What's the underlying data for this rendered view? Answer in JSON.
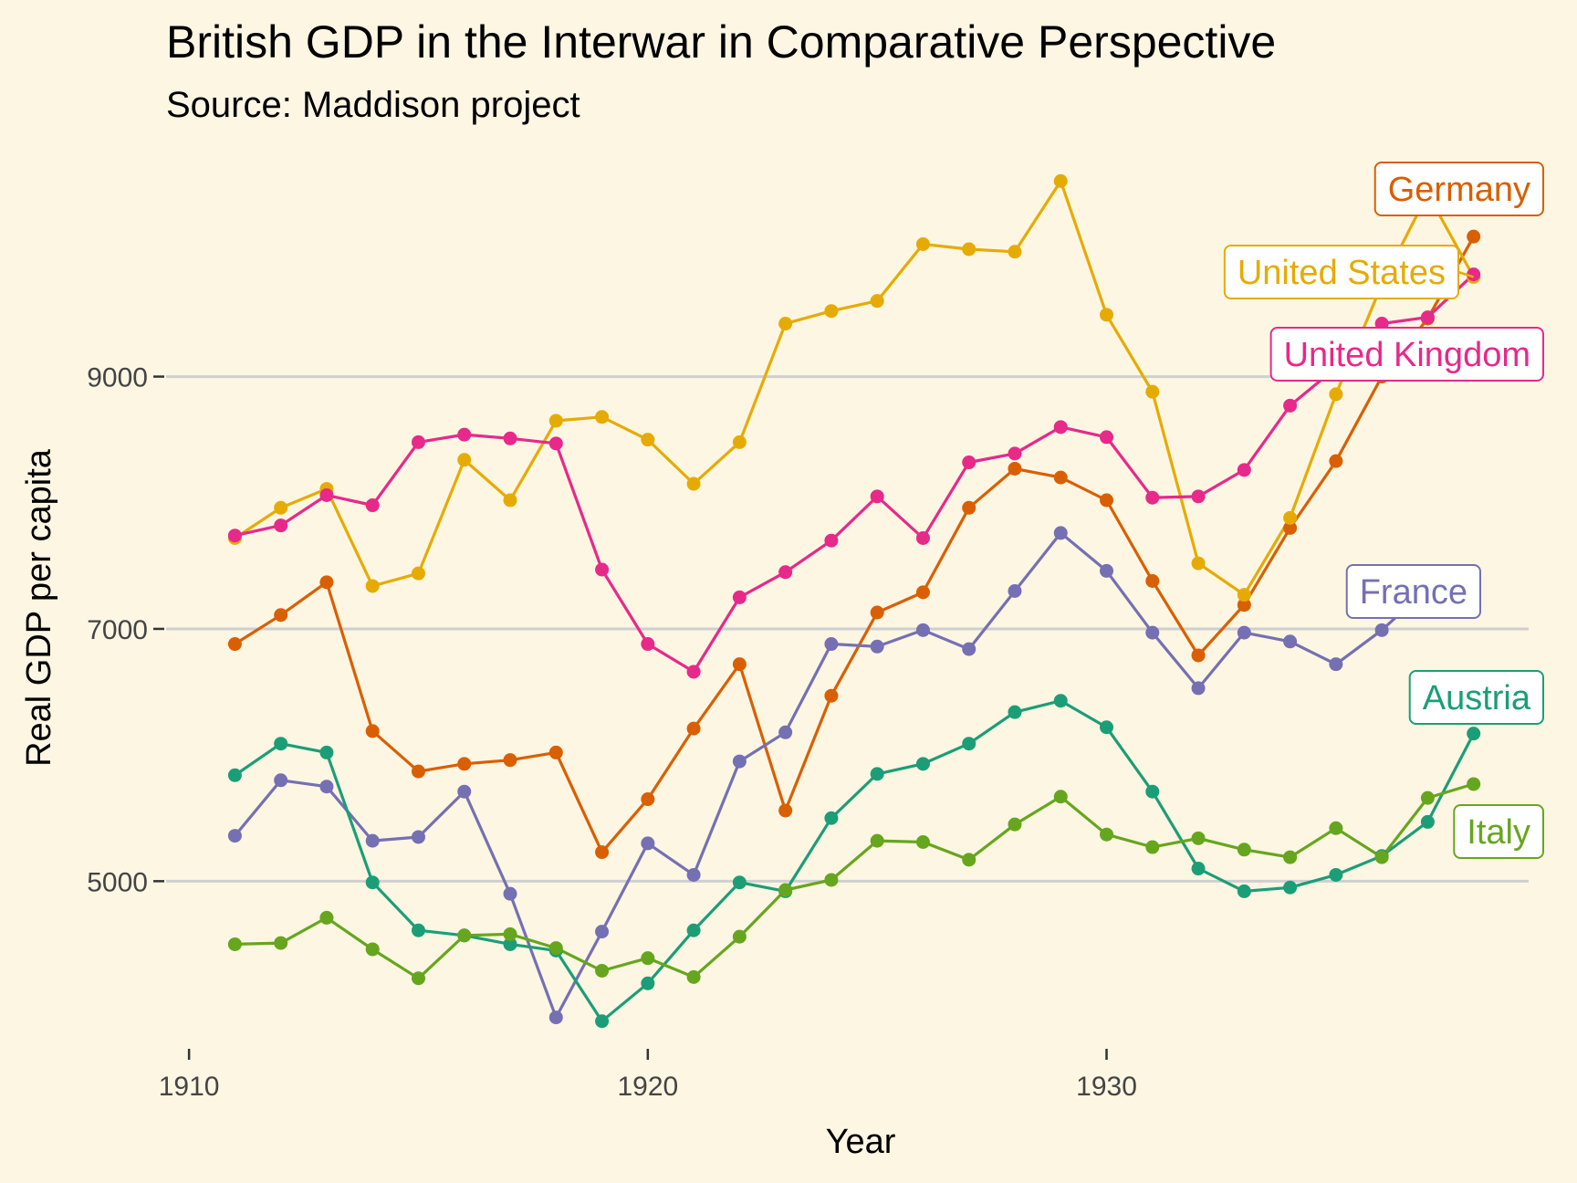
{
  "chart_data": {
    "type": "line",
    "title": "British GDP in the Interwar in Comparative Perspective",
    "subtitle": "Source: Maddison project",
    "xlabel": "Year",
    "ylabel": "Real GDP per capita",
    "xlim": [
      1909.5,
      1939.2
    ],
    "ylim": [
      3700,
      10900
    ],
    "xticks": [
      1910,
      1920,
      1930
    ],
    "yticks": [
      5000,
      7000,
      9000
    ],
    "grid": "horizontal major lines",
    "legend": "direct labels at right end of lines",
    "x": [
      1911,
      1912,
      1913,
      1914,
      1915,
      1916,
      1917,
      1918,
      1919,
      1920,
      1921,
      1922,
      1923,
      1924,
      1925,
      1926,
      1927,
      1928,
      1929,
      1930,
      1931,
      1932,
      1933,
      1934,
      1935,
      1936,
      1937,
      1938
    ],
    "series": [
      {
        "name": "Germany",
        "color": "#d95f02",
        "values": [
          6880,
          7110,
          7370,
          6190,
          5870,
          5930,
          5960,
          6020,
          5230,
          5650,
          6210,
          6720,
          5560,
          6470,
          7130,
          7290,
          7960,
          8270,
          8200,
          8020,
          7380,
          6790,
          7190,
          7800,
          8330,
          9000,
          9460,
          10110
        ]
      },
      {
        "name": "United States",
        "color": "#e6ab02",
        "values": [
          7720,
          7960,
          8110,
          7340,
          7440,
          8340,
          8020,
          8650,
          8680,
          8500,
          8150,
          8480,
          9420,
          9520,
          9600,
          10050,
          10010,
          9990,
          10550,
          9490,
          8880,
          7520,
          7270,
          7880,
          8860,
          9730,
          10450,
          9790
        ]
      },
      {
        "name": "United Kingdom",
        "color": "#e7298a",
        "values": [
          7740,
          7820,
          8060,
          7980,
          8480,
          8540,
          8510,
          8470,
          7470,
          6880,
          6660,
          7250,
          7450,
          7700,
          8050,
          7720,
          8320,
          8390,
          8600,
          8520,
          8040,
          8050,
          8260,
          8770,
          9070,
          9420,
          9470,
          9810
        ]
      },
      {
        "name": "France",
        "color": "#7570b3",
        "values": [
          5360,
          5800,
          5750,
          5320,
          5350,
          5710,
          4900,
          3920,
          4600,
          5300,
          5050,
          5950,
          6180,
          6880,
          6860,
          6990,
          6840,
          7300,
          7760,
          7460,
          6970,
          6530,
          6970,
          6900,
          6720,
          6990,
          7320,
          7350
        ]
      },
      {
        "name": "Austria",
        "color": "#1b9e77",
        "values": [
          5840,
          6090,
          6020,
          4990,
          4610,
          4570,
          4500,
          4450,
          3890,
          4190,
          4610,
          4990,
          4920,
          5500,
          5850,
          5930,
          6090,
          6340,
          6430,
          6220,
          5710,
          5100,
          4920,
          4950,
          5050,
          5200,
          5470,
          6170
        ]
      },
      {
        "name": "Italy",
        "color": "#66a61e",
        "values": [
          4500,
          4510,
          4710,
          4460,
          4230,
          4570,
          4580,
          4470,
          4290,
          4390,
          4240,
          4560,
          4930,
          5010,
          5320,
          5310,
          5170,
          5450,
          5670,
          5370,
          5270,
          5340,
          5250,
          5190,
          5420,
          5190,
          5660,
          5770
        ]
      }
    ],
    "labels": [
      {
        "text": "Germany",
        "series": "Germany"
      },
      {
        "text": "United States",
        "series": "United States"
      },
      {
        "text": "United Kingdom",
        "series": "United Kingdom"
      },
      {
        "text": "France",
        "series": "France"
      },
      {
        "text": "Austria",
        "series": "Austria"
      },
      {
        "text": "Italy",
        "series": "Italy"
      }
    ]
  }
}
